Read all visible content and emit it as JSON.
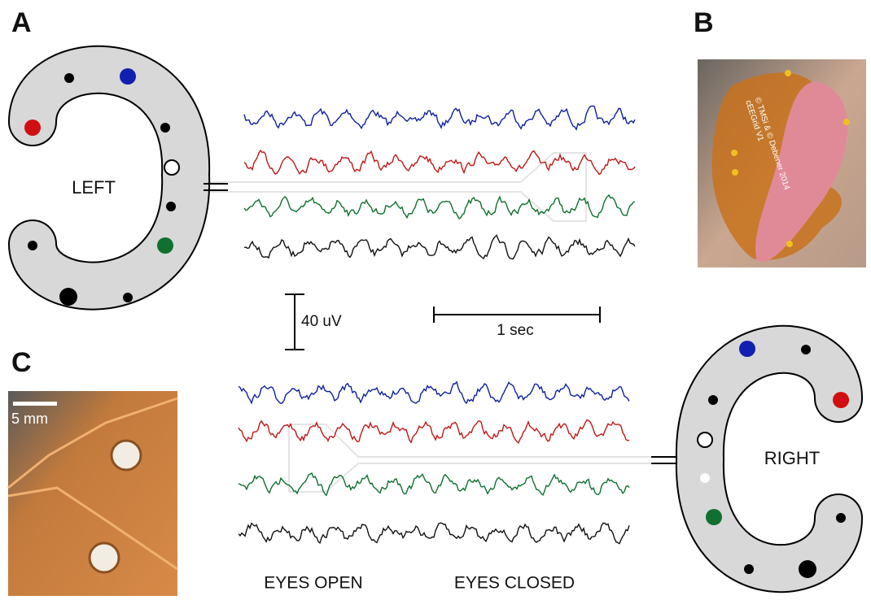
{
  "panels": [
    {
      "label": "A"
    },
    {
      "label": "B"
    },
    {
      "label": "C"
    }
  ],
  "left_grid": {
    "label": "LEFT"
  },
  "right_grid": {
    "label": "RIGHT"
  },
  "scale_bars": {
    "amplitude": "40 uV",
    "time": "1 sec",
    "photo": "5 mm"
  },
  "conditions": [
    "EYES OPEN",
    "EYES CLOSED"
  ],
  "photo_b": {
    "imprint": "© TMSi & © Debener 2014",
    "model": "cEEGrid V1"
  }
}
